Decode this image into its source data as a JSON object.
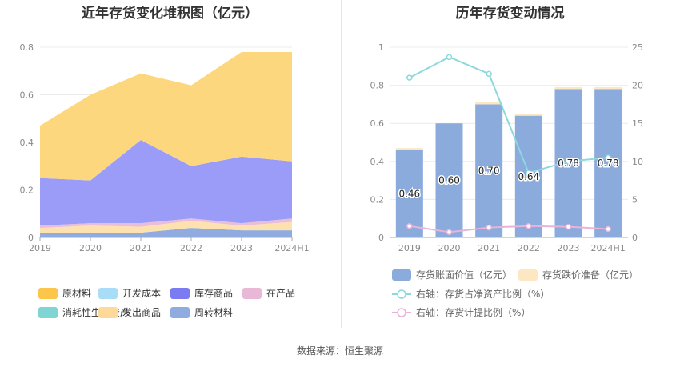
{
  "source": "数据来源：恒生聚源",
  "chart_data": [
    {
      "type": "area",
      "title": "近年存货变化堆积图（亿元）",
      "categories": [
        "2019",
        "2020",
        "2021",
        "2022",
        "2023",
        "2024H1"
      ],
      "ylim": [
        0,
        0.8
      ],
      "yticks": [
        "0",
        "0.2",
        "0.4",
        "0.6",
        "0.8"
      ],
      "stacked": true,
      "series": [
        {
          "name": "周转材料",
          "color": "#8fabe0",
          "values": [
            0.02,
            0.02,
            0.02,
            0.04,
            0.03,
            0.03
          ]
        },
        {
          "name": "发出商品",
          "color": "#fde2b0",
          "values": [
            0.02,
            0.03,
            0.025,
            0.03,
            0.02,
            0.035
          ]
        },
        {
          "name": "消耗性生物资产",
          "color": "#7fd5d3",
          "values": [
            0,
            0,
            0,
            0,
            0,
            0
          ]
        },
        {
          "name": "在产品",
          "color": "#eabed8",
          "values": [
            0.01,
            0.01,
            0.015,
            0.01,
            0.01,
            0.015
          ]
        },
        {
          "name": "库存商品",
          "color": "#9b9cf7",
          "values": [
            0.2,
            0.18,
            0.35,
            0.22,
            0.28,
            0.24
          ]
        },
        {
          "name": "开发成本",
          "color": "#a8dcf7",
          "values": [
            0,
            0,
            0,
            0,
            0,
            0
          ]
        },
        {
          "name": "原材料",
          "color": "#fdd77e",
          "values": [
            0.22,
            0.36,
            0.28,
            0.34,
            0.44,
            0.46
          ]
        }
      ],
      "legend": {
        "placement": "bottom",
        "rows": [
          [
            {
              "label": "原材料",
              "color": "#fcc64d"
            },
            {
              "label": "开发成本",
              "color": "#a8dcf7"
            },
            {
              "label": "库存商品",
              "color": "#7b7cf1"
            },
            {
              "label": "在产品",
              "color": "#e8b8d6"
            }
          ],
          [
            {
              "label": "消耗性生物资产",
              "color": "#7fd5d3"
            },
            {
              "label": "发出商品",
              "color": "#fdd99a"
            },
            {
              "label": "周转材料",
              "color": "#8fabe0"
            }
          ]
        ]
      }
    },
    {
      "type": "bar",
      "title": "历年存货变动情况",
      "categories": [
        "2019",
        "2020",
        "2021",
        "2022",
        "2023",
        "2024H1"
      ],
      "ylim": [
        0,
        1
      ],
      "yticks": [
        "0",
        "0.2",
        "0.4",
        "0.6",
        "0.8",
        "1"
      ],
      "y2lim": [
        0,
        25
      ],
      "y2ticks": [
        "0",
        "5",
        "10",
        "15",
        "20",
        "25"
      ],
      "bars": {
        "name": "存货账面价值（亿元）",
        "color": "#8aabdc",
        "values": [
          0.46,
          0.6,
          0.7,
          0.64,
          0.78,
          0.78
        ],
        "labels": [
          "0.46",
          "0.60",
          "0.70",
          "0.64",
          "0.78",
          "0.78"
        ]
      },
      "bars_top": {
        "name": "存货跌价准备（亿元）",
        "color": "#fde6c2",
        "values": [
          0.01,
          0,
          0.01,
          0.01,
          0.01,
          0.01
        ]
      },
      "lines": [
        {
          "name": "右轴：存货占净资产比例（%）",
          "color": "#8dd8dc",
          "axis": "right",
          "values": [
            21,
            23.7,
            21.5,
            8.5,
            10,
            10.5
          ]
        },
        {
          "name": "右轴：存货计提比例（%）",
          "color": "#e7b3da",
          "axis": "right",
          "values": [
            1.5,
            0.7,
            1.3,
            1.5,
            1.4,
            1.1
          ]
        }
      ]
    }
  ]
}
